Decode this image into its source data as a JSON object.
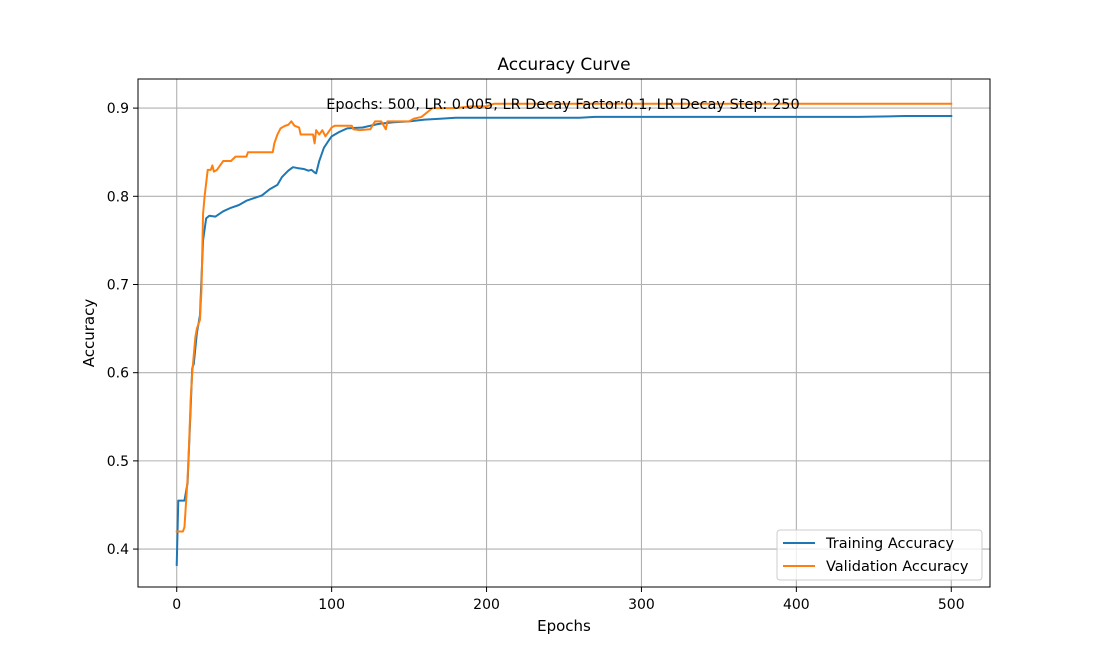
{
  "chart_data": {
    "type": "line",
    "title": "Accuracy Curve",
    "xlabel": "Epochs",
    "ylabel": "Accuracy",
    "annotation": "Epochs: 500, LR: 0.005, LR Decay Factor:0.1, LR Decay Step: 250",
    "xlim": [
      -25,
      525
    ],
    "ylim": [
      0.357,
      0.933
    ],
    "xticks": [
      0,
      100,
      200,
      300,
      400,
      500
    ],
    "yticks": [
      0.4,
      0.5,
      0.6,
      0.7,
      0.8,
      0.9
    ],
    "grid": true,
    "legend_position": "lower right",
    "series": [
      {
        "name": "Training Accuracy",
        "color": "#1f77b4",
        "points": [
          [
            0,
            0.382
          ],
          [
            1,
            0.455
          ],
          [
            5,
            0.455
          ],
          [
            7,
            0.475
          ],
          [
            9,
            0.56
          ],
          [
            10,
            0.605
          ],
          [
            11,
            0.61
          ],
          [
            13,
            0.645
          ],
          [
            15,
            0.665
          ],
          [
            17,
            0.75
          ],
          [
            19,
            0.775
          ],
          [
            21,
            0.778
          ],
          [
            25,
            0.777
          ],
          [
            30,
            0.783
          ],
          [
            35,
            0.787
          ],
          [
            40,
            0.79
          ],
          [
            45,
            0.795
          ],
          [
            50,
            0.798
          ],
          [
            55,
            0.801
          ],
          [
            60,
            0.808
          ],
          [
            65,
            0.813
          ],
          [
            68,
            0.822
          ],
          [
            72,
            0.829
          ],
          [
            75,
            0.833
          ],
          [
            78,
            0.832
          ],
          [
            82,
            0.831
          ],
          [
            85,
            0.829
          ],
          [
            87,
            0.83
          ],
          [
            89,
            0.827
          ],
          [
            90,
            0.826
          ],
          [
            92,
            0.84
          ],
          [
            95,
            0.855
          ],
          [
            98,
            0.863
          ],
          [
            100,
            0.868
          ],
          [
            105,
            0.873
          ],
          [
            110,
            0.877
          ],
          [
            120,
            0.878
          ],
          [
            130,
            0.882
          ],
          [
            140,
            0.884
          ],
          [
            150,
            0.885
          ],
          [
            160,
            0.887
          ],
          [
            170,
            0.888
          ],
          [
            180,
            0.889
          ],
          [
            200,
            0.889
          ],
          [
            220,
            0.889
          ],
          [
            250,
            0.889
          ],
          [
            260,
            0.889
          ],
          [
            270,
            0.89
          ],
          [
            300,
            0.89
          ],
          [
            330,
            0.89
          ],
          [
            400,
            0.89
          ],
          [
            440,
            0.89
          ],
          [
            470,
            0.891
          ],
          [
            500,
            0.891
          ]
        ]
      },
      {
        "name": "Validation Accuracy",
        "color": "#ff7f0e",
        "points": [
          [
            0,
            0.42
          ],
          [
            4,
            0.42
          ],
          [
            5,
            0.425
          ],
          [
            7,
            0.48
          ],
          [
            8,
            0.52
          ],
          [
            9,
            0.57
          ],
          [
            10,
            0.6
          ],
          [
            12,
            0.64
          ],
          [
            13,
            0.65
          ],
          [
            15,
            0.66
          ],
          [
            16,
            0.695
          ],
          [
            17,
            0.78
          ],
          [
            18,
            0.8
          ],
          [
            20,
            0.83
          ],
          [
            22,
            0.83
          ],
          [
            23,
            0.835
          ],
          [
            24,
            0.828
          ],
          [
            26,
            0.83
          ],
          [
            28,
            0.835
          ],
          [
            30,
            0.84
          ],
          [
            35,
            0.84
          ],
          [
            38,
            0.845
          ],
          [
            45,
            0.845
          ],
          [
            46,
            0.85
          ],
          [
            62,
            0.85
          ],
          [
            63,
            0.86
          ],
          [
            65,
            0.87
          ],
          [
            67,
            0.877
          ],
          [
            70,
            0.88
          ],
          [
            72,
            0.881
          ],
          [
            74,
            0.885
          ],
          [
            76,
            0.88
          ],
          [
            79,
            0.878
          ],
          [
            80,
            0.87
          ],
          [
            88,
            0.87
          ],
          [
            89,
            0.86
          ],
          [
            90,
            0.875
          ],
          [
            92,
            0.87
          ],
          [
            94,
            0.875
          ],
          [
            96,
            0.868
          ],
          [
            98,
            0.873
          ],
          [
            100,
            0.878
          ],
          [
            102,
            0.88
          ],
          [
            113,
            0.88
          ],
          [
            114,
            0.876
          ],
          [
            118,
            0.875
          ],
          [
            125,
            0.876
          ],
          [
            128,
            0.885
          ],
          [
            132,
            0.885
          ],
          [
            135,
            0.876
          ],
          [
            136,
            0.885
          ],
          [
            150,
            0.885
          ],
          [
            153,
            0.888
          ],
          [
            158,
            0.89
          ],
          [
            165,
            0.9
          ],
          [
            180,
            0.9
          ],
          [
            190,
            0.902
          ],
          [
            200,
            0.902
          ],
          [
            205,
            0.905
          ],
          [
            500,
            0.905
          ]
        ]
      }
    ]
  }
}
